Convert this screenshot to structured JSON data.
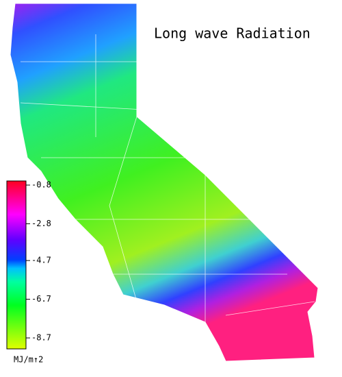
{
  "title": "Long wave Radiation",
  "colorbar": {
    "clim": [
      -8.7,
      -0.8
    ],
    "ticks": [
      -0.8,
      -2.8,
      -4.7,
      -6.7,
      -8.7
    ],
    "unit": "MJ/m↑2"
  }
}
